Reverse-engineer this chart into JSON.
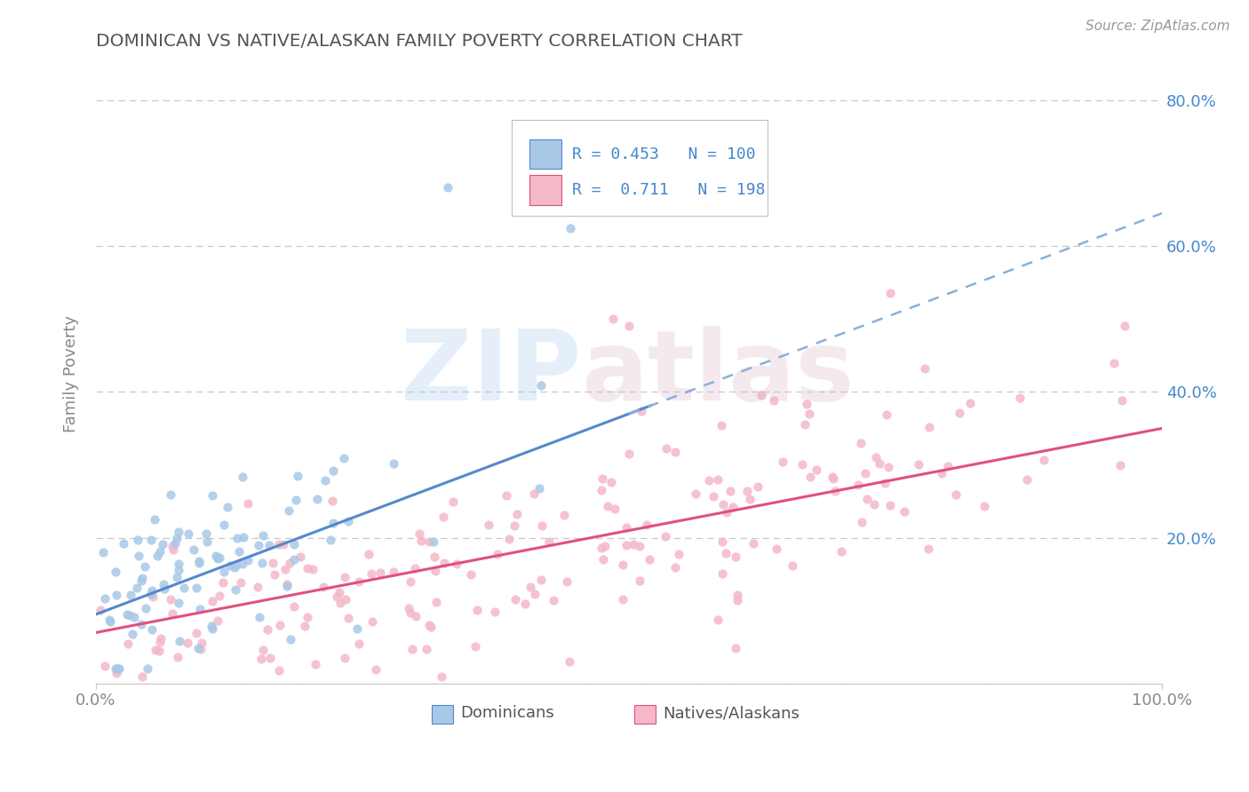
{
  "title": "DOMINICAN VS NATIVE/ALASKAN FAMILY POVERTY CORRELATION CHART",
  "source": "Source: ZipAtlas.com",
  "ylabel": "Family Poverty",
  "xmin": 0.0,
  "xmax": 1.0,
  "ymin": 0.0,
  "ymax": 0.85,
  "yticks": [
    0.0,
    0.2,
    0.4,
    0.6,
    0.8
  ],
  "yticklabels": [
    "",
    "20.0%",
    "40.0%",
    "60.0%",
    "80.0%"
  ],
  "xticks": [
    0.0,
    1.0
  ],
  "xticklabels": [
    "0.0%",
    "100.0%"
  ],
  "blue_R": 0.453,
  "blue_N": 100,
  "pink_R": 0.711,
  "pink_N": 198,
  "blue_color": "#a8c8e8",
  "pink_color": "#f4b8c8",
  "blue_line_color": "#5588cc",
  "pink_line_color": "#e05080",
  "blue_dash_color": "#8ab0d8",
  "background_color": "#ffffff",
  "grid_color": "#c8c8c8",
  "title_color": "#555555",
  "legend_text_color": "#4488cc",
  "axis_color": "#888888",
  "seed": 42
}
